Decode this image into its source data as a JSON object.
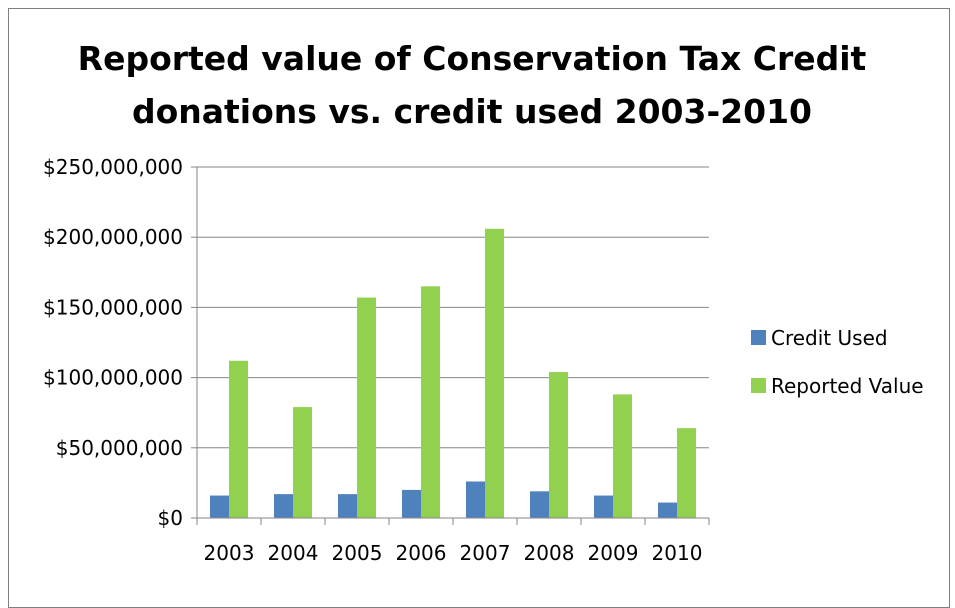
{
  "chart_data": {
    "type": "bar",
    "title_lines": [
      "Reported value of Conservation Tax Credit",
      "donations vs. credit used 2003-2010"
    ],
    "categories": [
      "2003",
      "2004",
      "2005",
      "2006",
      "2007",
      "2008",
      "2009",
      "2010"
    ],
    "series": [
      {
        "name": "Credit Used",
        "color": "#4f81bd",
        "values": [
          16000000,
          17000000,
          17000000,
          20000000,
          26000000,
          19000000,
          16000000,
          11000000
        ]
      },
      {
        "name": "Reported Value",
        "color": "#92d050",
        "values": [
          112000000,
          79000000,
          157000000,
          165000000,
          206000000,
          104000000,
          88000000,
          64000000
        ]
      }
    ],
    "ylim": [
      0,
      250000000
    ],
    "yticks": [
      0,
      50000000,
      100000000,
      150000000,
      200000000,
      250000000
    ],
    "ytick_labels": [
      "$0",
      "$50,000,000",
      "$100,000,000",
      "$150,000,000",
      "$200,000,000",
      "$250,000,000"
    ],
    "xlabel": "",
    "ylabel": "",
    "grid": true,
    "legend_position": "right"
  }
}
